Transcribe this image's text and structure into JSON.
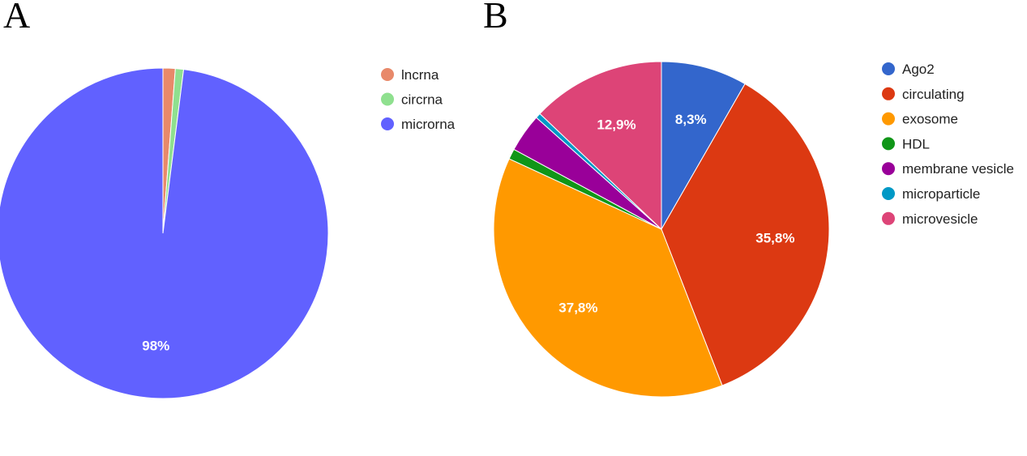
{
  "chart_data": [
    {
      "type": "pie",
      "panel": "A",
      "labels": [
        "lncrna",
        "circrna",
        "microrna"
      ],
      "values": [
        1.2,
        0.8,
        98
      ],
      "colors": [
        "#e8896a",
        "#8fe08f",
        "#6161ff"
      ],
      "data_labels": [
        "",
        "",
        "98%"
      ],
      "legend": "right"
    },
    {
      "type": "pie",
      "panel": "B",
      "labels": [
        "Ago2",
        "circulating",
        "exosome",
        "HDL",
        "membrane vesicle",
        "microparticle",
        "microvesicle"
      ],
      "values": [
        8.3,
        35.8,
        37.8,
        1.0,
        3.7,
        0.5,
        12.9
      ],
      "colors": [
        "#3366cc",
        "#dc3912",
        "#ff9900",
        "#109618",
        "#990099",
        "#0099c6",
        "#dd4477"
      ],
      "data_labels": [
        "8,3%",
        "35,8%",
        "37,8%",
        "",
        "",
        "",
        "12,9%"
      ],
      "legend": "right"
    }
  ]
}
